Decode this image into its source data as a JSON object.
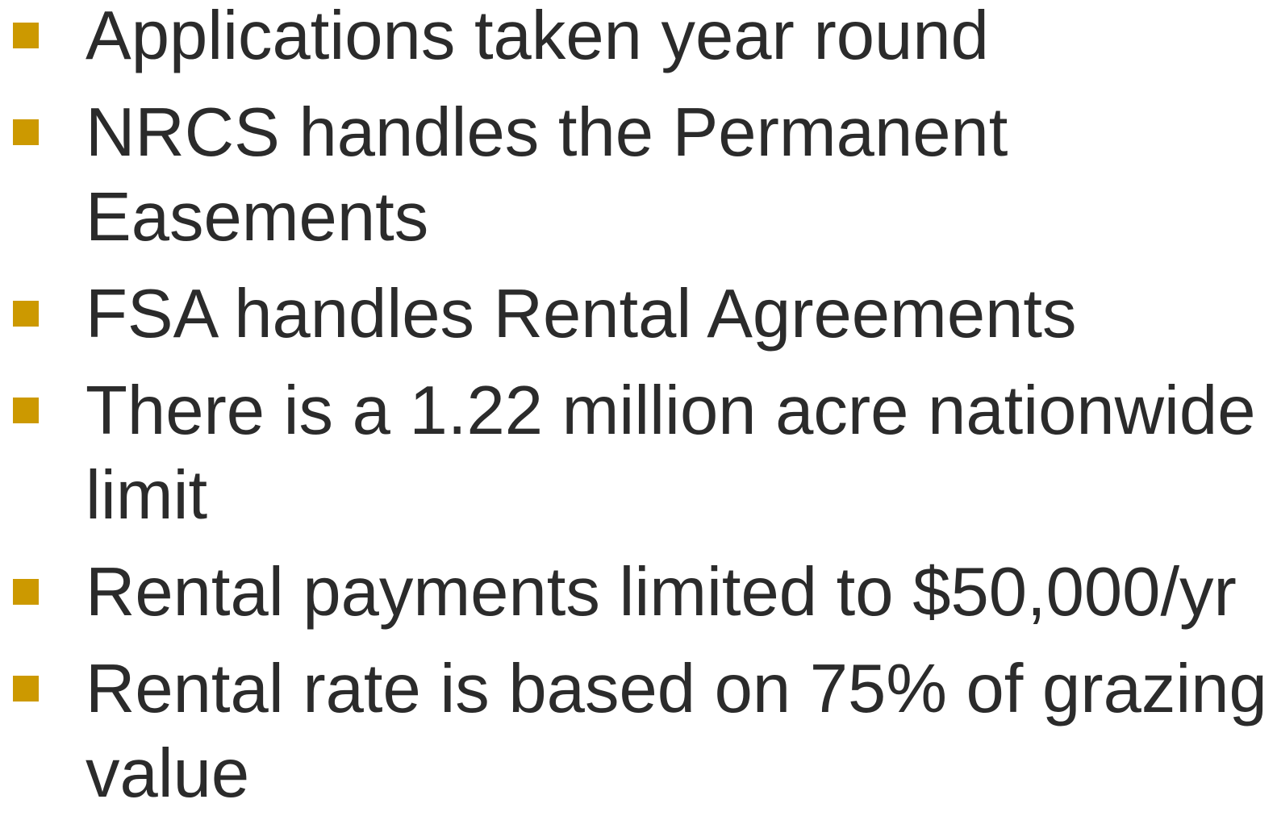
{
  "bullets": [
    "Applications taken year round",
    "NRCS handles the Permanent Easements",
    "FSA handles Rental Agreements",
    "There is a 1.22 million acre nationwide limit",
    "Rental payments limited to $50,000/yr",
    "Rental rate is based on 75% of grazing value"
  ]
}
